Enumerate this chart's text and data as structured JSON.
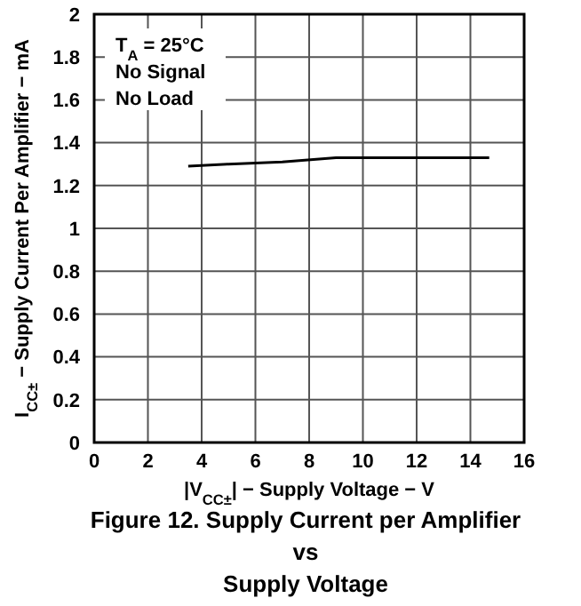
{
  "chart_data": {
    "type": "line",
    "title": "Figure 12. Supply Current per Amplifier\nvs\nSupply Voltage",
    "xlabel": "|V$_{CC±}$| − Supply Voltage − V",
    "ylabel": "I$_{CC±}$ − Supply Current Per Amplifier − mA",
    "annotations": [
      "T$_{A}$ = 25°C",
      "No Signal",
      "No Load"
    ],
    "series": [
      {
        "color": "#000000",
        "x": [
          3.5,
          5,
          7,
          9,
          11,
          13,
          14.7
        ],
        "values": [
          1.29,
          1.3,
          1.31,
          1.33,
          1.33,
          1.33,
          1.33
        ]
      }
    ],
    "xlim": [
      0,
      16
    ],
    "xticks": [
      0,
      2,
      4,
      6,
      8,
      10,
      12,
      14,
      16
    ],
    "ylim": [
      0,
      2
    ],
    "yticks": [
      0,
      0.2,
      0.4,
      0.6,
      0.8,
      1,
      1.2,
      1.4,
      1.6,
      1.8,
      2
    ],
    "grid": true,
    "marker": "none",
    "line_style": "solid"
  }
}
